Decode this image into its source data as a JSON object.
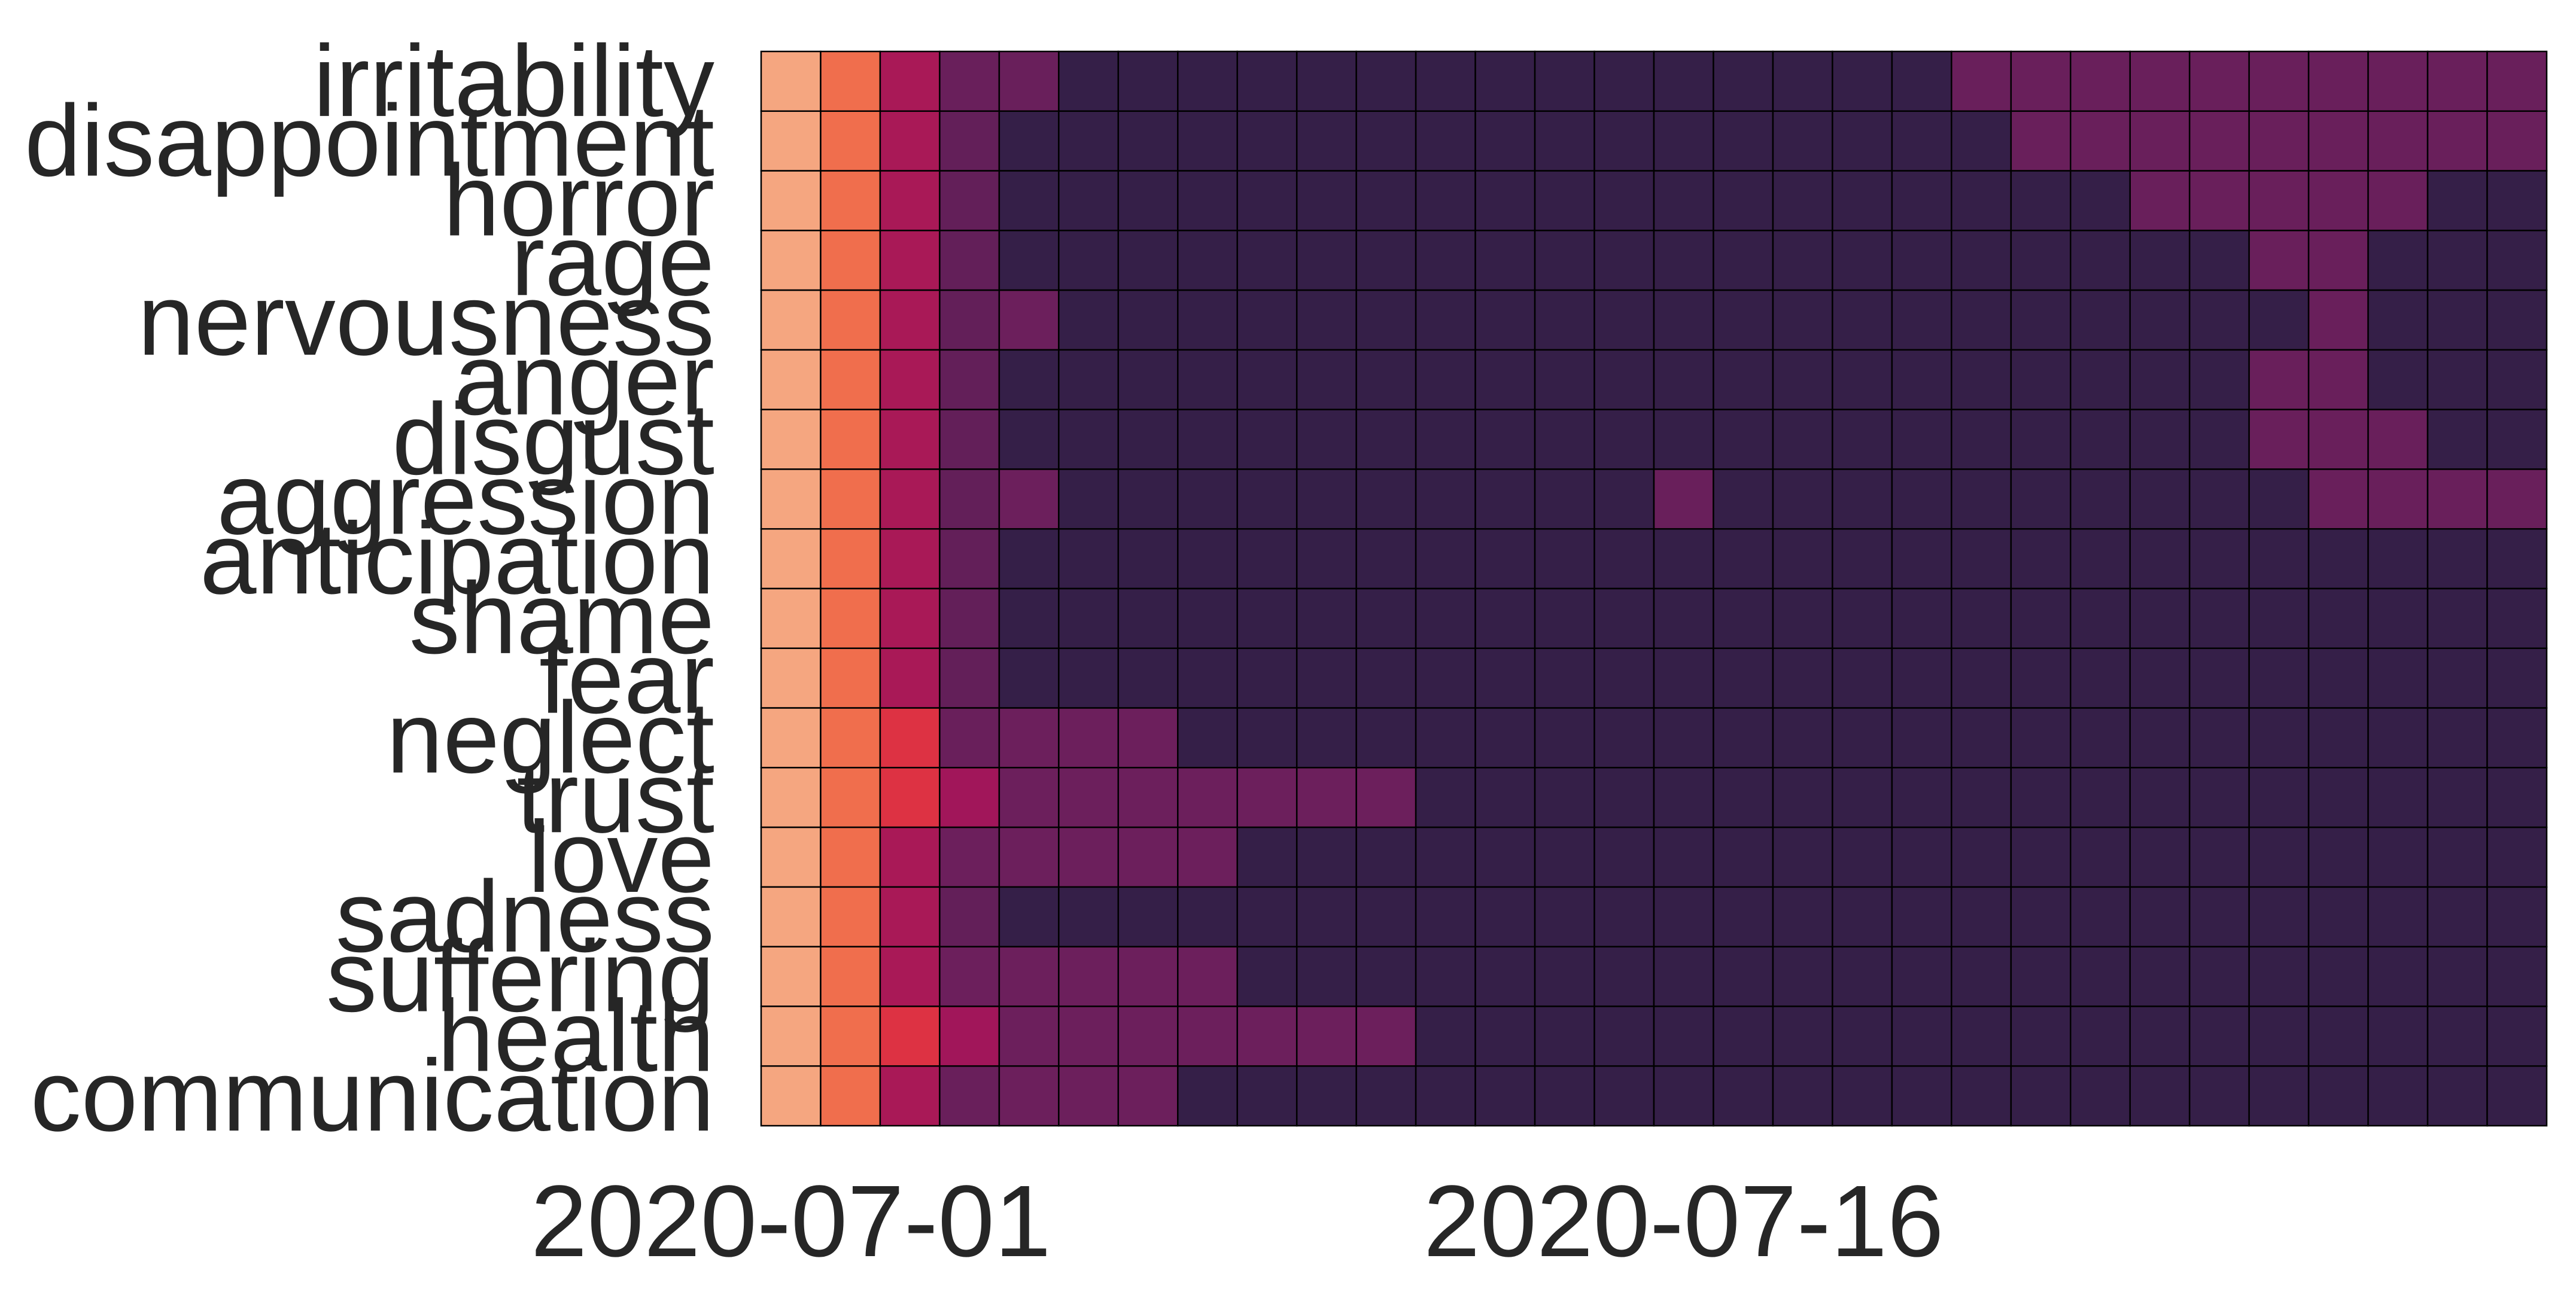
{
  "chart_data": {
    "type": "heatmap",
    "title": "",
    "xlabel": "",
    "ylabel": "",
    "grid": true,
    "legend": "none",
    "x_tick_labels": [
      {
        "index": 0,
        "label": "2020-07-01"
      },
      {
        "index": 15,
        "label": "2020-07-16"
      }
    ],
    "x_count": 30,
    "rows": [
      "irritability",
      "disappointment",
      "horror",
      "rage",
      "nervousness",
      "anger",
      "disgust",
      "aggression",
      "anticipation",
      "shame",
      "fear",
      "neglect",
      "trust",
      "love",
      "sadness",
      "suffering",
      "health",
      "communication"
    ],
    "value_range": [
      0,
      1
    ],
    "colormap": [
      "#2d1e3e",
      "#3b1f4f",
      "#6d1f5c",
      "#a1165a",
      "#e03342",
      "#f3784f",
      "#f6b48f"
    ],
    "cell_edge_color": "#000000",
    "values": [
      [
        0.96,
        0.81,
        0.52,
        0.32,
        0.32,
        0.1,
        0.1,
        0.1,
        0.1,
        0.1,
        0.1,
        0.1,
        0.1,
        0.1,
        0.1,
        0.1,
        0.1,
        0.1,
        0.1,
        0.1,
        0.32,
        0.32,
        0.32,
        0.32,
        0.32,
        0.32,
        0.32,
        0.32,
        0.32,
        0.32
      ],
      [
        0.96,
        0.81,
        0.52,
        0.3,
        0.1,
        0.1,
        0.1,
        0.1,
        0.1,
        0.1,
        0.1,
        0.1,
        0.1,
        0.1,
        0.1,
        0.1,
        0.1,
        0.1,
        0.1,
        0.1,
        0.1,
        0.32,
        0.32,
        0.32,
        0.32,
        0.32,
        0.32,
        0.32,
        0.32,
        0.32
      ],
      [
        0.96,
        0.81,
        0.52,
        0.3,
        0.1,
        0.1,
        0.1,
        0.1,
        0.1,
        0.1,
        0.1,
        0.1,
        0.1,
        0.1,
        0.1,
        0.1,
        0.1,
        0.1,
        0.1,
        0.1,
        0.1,
        0.1,
        0.1,
        0.32,
        0.32,
        0.32,
        0.32,
        0.32,
        0.1,
        0.1
      ],
      [
        0.96,
        0.81,
        0.52,
        0.3,
        0.1,
        0.1,
        0.1,
        0.1,
        0.1,
        0.1,
        0.1,
        0.1,
        0.1,
        0.1,
        0.1,
        0.1,
        0.1,
        0.1,
        0.1,
        0.1,
        0.1,
        0.1,
        0.1,
        0.1,
        0.1,
        0.32,
        0.32,
        0.1,
        0.1,
        0.1
      ],
      [
        0.96,
        0.81,
        0.52,
        0.3,
        0.33,
        0.1,
        0.1,
        0.1,
        0.1,
        0.1,
        0.1,
        0.1,
        0.1,
        0.1,
        0.1,
        0.1,
        0.1,
        0.1,
        0.1,
        0.1,
        0.1,
        0.1,
        0.1,
        0.1,
        0.1,
        0.1,
        0.32,
        0.1,
        0.1,
        0.1
      ],
      [
        0.96,
        0.81,
        0.52,
        0.3,
        0.1,
        0.1,
        0.1,
        0.1,
        0.1,
        0.1,
        0.1,
        0.1,
        0.1,
        0.1,
        0.1,
        0.1,
        0.1,
        0.1,
        0.1,
        0.1,
        0.1,
        0.1,
        0.1,
        0.1,
        0.1,
        0.32,
        0.32,
        0.1,
        0.1,
        0.1
      ],
      [
        0.96,
        0.81,
        0.52,
        0.3,
        0.1,
        0.1,
        0.1,
        0.1,
        0.1,
        0.1,
        0.1,
        0.1,
        0.1,
        0.1,
        0.1,
        0.1,
        0.1,
        0.1,
        0.1,
        0.1,
        0.1,
        0.1,
        0.1,
        0.1,
        0.1,
        0.32,
        0.32,
        0.32,
        0.1,
        0.1
      ],
      [
        0.96,
        0.81,
        0.52,
        0.3,
        0.33,
        0.1,
        0.1,
        0.1,
        0.1,
        0.1,
        0.1,
        0.1,
        0.1,
        0.1,
        0.1,
        0.32,
        0.1,
        0.1,
        0.1,
        0.1,
        0.1,
        0.1,
        0.1,
        0.1,
        0.1,
        0.1,
        0.32,
        0.32,
        0.32,
        0.32
      ],
      [
        0.96,
        0.81,
        0.52,
        0.3,
        0.1,
        0.1,
        0.1,
        0.1,
        0.1,
        0.1,
        0.1,
        0.1,
        0.1,
        0.1,
        0.1,
        0.1,
        0.1,
        0.1,
        0.1,
        0.1,
        0.1,
        0.1,
        0.1,
        0.1,
        0.1,
        0.1,
        0.1,
        0.1,
        0.1,
        0.1
      ],
      [
        0.96,
        0.81,
        0.52,
        0.3,
        0.1,
        0.1,
        0.1,
        0.1,
        0.1,
        0.1,
        0.1,
        0.1,
        0.1,
        0.1,
        0.1,
        0.1,
        0.1,
        0.1,
        0.1,
        0.1,
        0.1,
        0.1,
        0.1,
        0.1,
        0.1,
        0.1,
        0.1,
        0.1,
        0.1,
        0.1
      ],
      [
        0.96,
        0.81,
        0.52,
        0.3,
        0.1,
        0.1,
        0.1,
        0.1,
        0.1,
        0.1,
        0.1,
        0.1,
        0.1,
        0.1,
        0.1,
        0.1,
        0.1,
        0.1,
        0.1,
        0.1,
        0.1,
        0.1,
        0.1,
        0.1,
        0.1,
        0.1,
        0.1,
        0.1,
        0.1,
        0.1
      ],
      [
        0.96,
        0.81,
        0.66,
        0.32,
        0.33,
        0.33,
        0.33,
        0.1,
        0.1,
        0.1,
        0.1,
        0.1,
        0.1,
        0.1,
        0.1,
        0.1,
        0.1,
        0.1,
        0.1,
        0.1,
        0.1,
        0.1,
        0.1,
        0.1,
        0.1,
        0.1,
        0.1,
        0.1,
        0.1,
        0.1
      ],
      [
        0.96,
        0.81,
        0.66,
        0.5,
        0.33,
        0.33,
        0.33,
        0.33,
        0.33,
        0.33,
        0.33,
        0.1,
        0.1,
        0.1,
        0.1,
        0.1,
        0.1,
        0.1,
        0.1,
        0.1,
        0.1,
        0.1,
        0.1,
        0.1,
        0.1,
        0.1,
        0.1,
        0.1,
        0.1,
        0.1
      ],
      [
        0.96,
        0.81,
        0.52,
        0.33,
        0.33,
        0.33,
        0.33,
        0.33,
        0.1,
        0.1,
        0.1,
        0.1,
        0.1,
        0.1,
        0.1,
        0.1,
        0.1,
        0.1,
        0.1,
        0.1,
        0.1,
        0.1,
        0.1,
        0.1,
        0.1,
        0.1,
        0.1,
        0.1,
        0.1,
        0.1
      ],
      [
        0.96,
        0.81,
        0.52,
        0.3,
        0.1,
        0.1,
        0.1,
        0.1,
        0.1,
        0.1,
        0.1,
        0.1,
        0.1,
        0.1,
        0.1,
        0.1,
        0.1,
        0.1,
        0.1,
        0.1,
        0.1,
        0.1,
        0.1,
        0.1,
        0.1,
        0.1,
        0.1,
        0.1,
        0.1,
        0.1
      ],
      [
        0.96,
        0.81,
        0.52,
        0.33,
        0.33,
        0.33,
        0.33,
        0.33,
        0.1,
        0.1,
        0.1,
        0.1,
        0.1,
        0.1,
        0.1,
        0.1,
        0.1,
        0.1,
        0.1,
        0.1,
        0.1,
        0.1,
        0.1,
        0.1,
        0.1,
        0.1,
        0.1,
        0.1,
        0.1,
        0.1
      ],
      [
        0.96,
        0.81,
        0.66,
        0.5,
        0.33,
        0.33,
        0.33,
        0.33,
        0.33,
        0.33,
        0.33,
        0.1,
        0.1,
        0.1,
        0.1,
        0.1,
        0.1,
        0.1,
        0.1,
        0.1,
        0.1,
        0.1,
        0.1,
        0.1,
        0.1,
        0.1,
        0.1,
        0.1,
        0.1,
        0.1
      ],
      [
        0.96,
        0.81,
        0.52,
        0.32,
        0.33,
        0.33,
        0.33,
        0.1,
        0.1,
        0.1,
        0.1,
        0.1,
        0.1,
        0.1,
        0.1,
        0.1,
        0.1,
        0.1,
        0.1,
        0.1,
        0.1,
        0.1,
        0.1,
        0.1,
        0.1,
        0.1,
        0.1,
        0.1,
        0.1,
        0.1
      ]
    ]
  }
}
